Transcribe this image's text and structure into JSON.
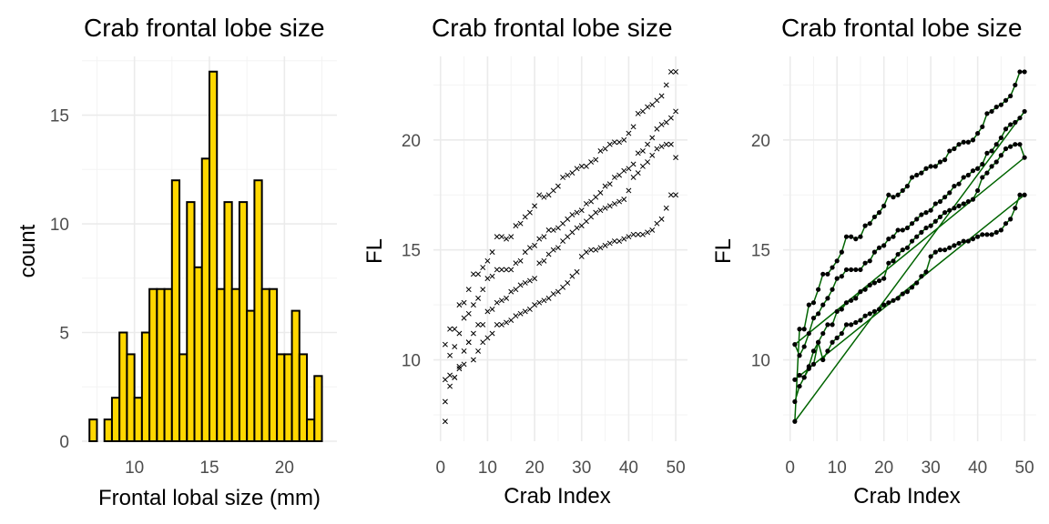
{
  "chart_data": [
    {
      "type": "bar",
      "title": "Crab frontal lobe size",
      "xlabel": "Frontal lobal size (mm)",
      "ylabel": "count",
      "xlim": [
        6.5,
        23.5
      ],
      "ylim": [
        0,
        17.7
      ],
      "xticks": [
        10,
        15,
        20
      ],
      "yticks": [
        0,
        5,
        10,
        15
      ],
      "bin_width": 0.5,
      "bin_start": 7.0,
      "values": [
        1,
        0,
        1,
        2,
        5,
        4,
        2,
        5,
        7,
        7,
        7,
        12,
        4,
        11,
        8,
        13,
        17,
        7,
        11,
        7,
        11,
        6,
        12,
        7,
        7,
        4,
        4,
        6,
        4,
        1,
        3
      ],
      "fill": "#FFD700",
      "stroke": "#000000",
      "grid": true
    },
    {
      "type": "scatter",
      "title": "Crab frontal lobe size",
      "xlabel": "Crab Index",
      "ylabel": "FL",
      "xlim": [
        -1.5,
        52.5
      ],
      "ylim": [
        6.3,
        23.8
      ],
      "xticks": [
        0,
        10,
        20,
        30,
        40,
        50
      ],
      "yticks": [
        10,
        15,
        20
      ],
      "marker": "x",
      "grid": true,
      "series": [
        {
          "x": [
            1,
            2,
            3,
            4,
            5,
            6,
            7,
            8,
            9,
            10,
            11,
            12,
            13,
            14,
            15,
            16,
            17,
            18,
            19,
            20,
            21,
            22,
            23,
            24,
            25,
            26,
            27,
            28,
            29,
            30,
            31,
            32,
            33,
            34,
            35,
            36,
            37,
            38,
            39,
            40,
            41,
            42,
            43,
            44,
            45,
            46,
            47,
            48,
            49,
            50
          ],
          "values": [
            8.1,
            8.8,
            9.2,
            9.6,
            9.8,
            10.8,
            10.0,
            10.4,
            10.8,
            11.0,
            11.2,
            11.6,
            11.6,
            11.7,
            11.8,
            12.0,
            12.1,
            12.2,
            12.3,
            12.5,
            12.6,
            12.7,
            12.8,
            13.0,
            13.1,
            13.3,
            13.5,
            13.8,
            14.0,
            14.7,
            14.9,
            15.0,
            15.0,
            15.1,
            15.2,
            15.3,
            15.4,
            15.4,
            15.5,
            15.6,
            15.7,
            15.7,
            15.7,
            15.8,
            15.9,
            16.2,
            16.4,
            16.9,
            17.5,
            17.5
          ]
        },
        {
          "x": [
            1,
            2,
            3,
            4,
            5,
            6,
            7,
            8,
            9,
            10,
            11,
            12,
            13,
            14,
            15,
            16,
            17,
            18,
            19,
            20,
            21,
            22,
            23,
            24,
            25,
            26,
            27,
            28,
            29,
            30,
            31,
            32,
            33,
            34,
            35,
            36,
            37,
            38,
            39,
            40,
            41,
            42,
            43,
            44,
            45,
            46,
            47,
            48,
            49,
            50
          ],
          "values": [
            9.1,
            9.3,
            9.2,
            9.7,
            10.4,
            10.8,
            11.2,
            11.6,
            11.6,
            12.2,
            12.3,
            12.6,
            12.7,
            12.8,
            13.1,
            13.2,
            13.4,
            13.5,
            13.6,
            13.7,
            14.4,
            14.5,
            14.8,
            15.0,
            15.1,
            15.4,
            15.6,
            15.8,
            16.0,
            16.1,
            16.3,
            16.5,
            16.7,
            16.8,
            16.9,
            17.0,
            17.1,
            17.2,
            17.3,
            17.7,
            18.3,
            18.5,
            18.8,
            19.0,
            19.3,
            19.6,
            19.7,
            19.8,
            19.8,
            19.2
          ]
        },
        {
          "x": [
            1,
            2,
            3,
            4,
            5,
            6,
            7,
            8,
            9,
            10,
            11,
            12,
            13,
            14,
            15,
            16,
            17,
            18,
            19,
            20,
            21,
            22,
            23,
            24,
            25,
            26,
            27,
            28,
            29,
            30,
            31,
            32,
            33,
            34,
            35,
            36,
            37,
            38,
            39,
            40,
            41,
            42,
            43,
            44,
            45,
            46,
            47,
            48,
            49,
            50
          ],
          "values": [
            10.7,
            10.2,
            10.6,
            11.2,
            11.9,
            12.1,
            12.5,
            12.8,
            13.2,
            13.7,
            13.8,
            14.1,
            14.1,
            14.1,
            14.1,
            14.4,
            14.5,
            14.9,
            15.1,
            15.2,
            15.5,
            15.6,
            15.9,
            15.9,
            16.0,
            16.2,
            16.4,
            16.6,
            16.7,
            16.8,
            17.1,
            17.2,
            17.4,
            17.6,
            17.9,
            18.0,
            18.3,
            18.4,
            18.6,
            18.7,
            18.9,
            19.4,
            19.5,
            19.8,
            20.1,
            20.5,
            20.7,
            20.8,
            21.0,
            21.3
          ]
        },
        {
          "x": [
            1,
            2,
            3,
            4,
            5,
            6,
            7,
            8,
            9,
            10,
            11,
            12,
            13,
            14,
            15,
            16,
            17,
            18,
            19,
            20,
            21,
            22,
            23,
            24,
            25,
            26,
            27,
            28,
            29,
            30,
            31,
            32,
            33,
            34,
            35,
            36,
            37,
            38,
            39,
            40,
            41,
            42,
            43,
            44,
            45,
            46,
            47,
            48,
            49,
            50
          ],
          "values": [
            7.2,
            11.4,
            11.4,
            12.5,
            12.6,
            13.2,
            13.9,
            13.9,
            14.2,
            14.5,
            14.9,
            15.6,
            15.6,
            15.5,
            15.6,
            16.1,
            16.2,
            16.5,
            16.7,
            17.0,
            17.5,
            17.4,
            17.5,
            17.7,
            17.9,
            18.3,
            18.4,
            18.5,
            18.7,
            18.8,
            18.8,
            19.0,
            19.1,
            19.5,
            19.6,
            19.8,
            19.9,
            19.9,
            20.0,
            20.3,
            20.6,
            21.2,
            21.3,
            21.5,
            21.6,
            21.8,
            22.0,
            22.5,
            23.1,
            23.1
          ]
        }
      ]
    },
    {
      "type": "line",
      "title": "Crab frontal lobe size",
      "xlabel": "Crab Index",
      "ylabel": "FL",
      "xlim": [
        -1.5,
        52.5
      ],
      "ylim": [
        6.3,
        23.8
      ],
      "xticks": [
        0,
        10,
        20,
        30,
        40,
        50
      ],
      "yticks": [
        10,
        15,
        20
      ],
      "line_color": "#006400",
      "marker": "point",
      "grid": true,
      "note_series_source": "same 4 series as scatter panel, connected in row order"
    }
  ]
}
